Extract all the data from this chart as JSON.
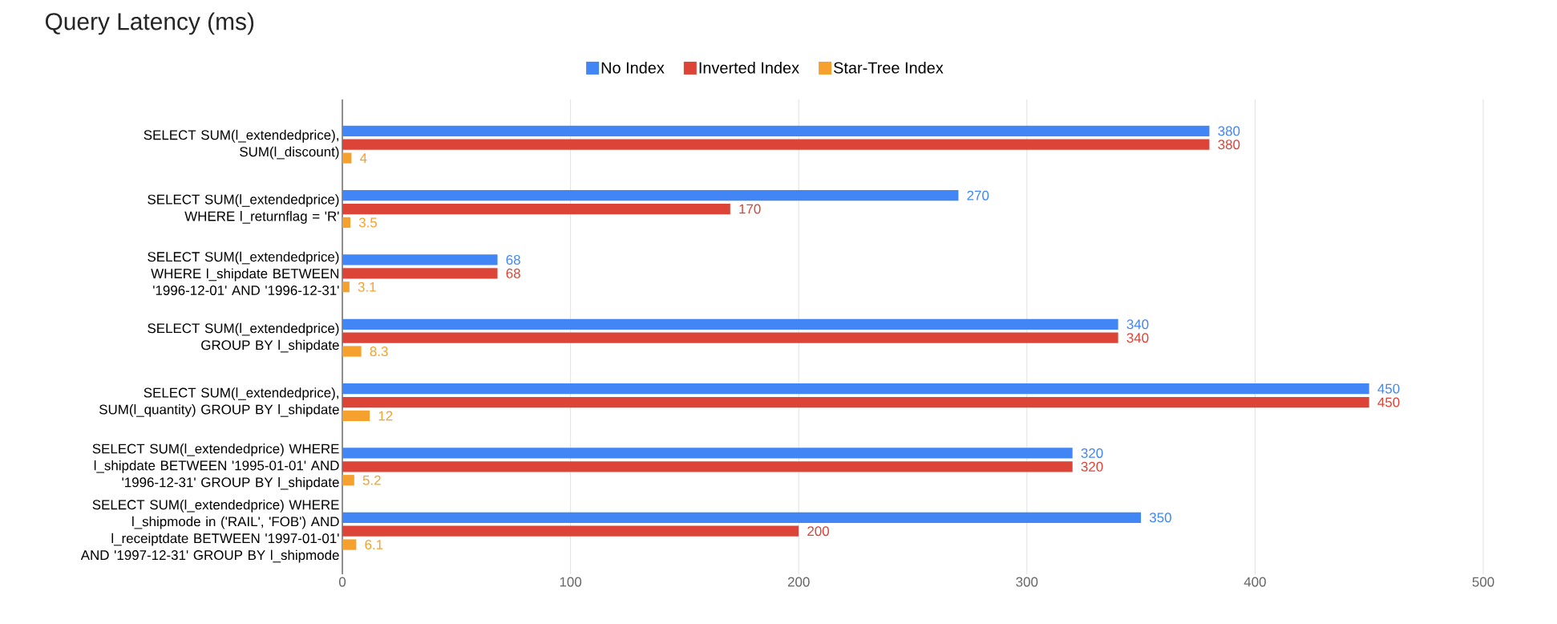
{
  "chart_data": {
    "type": "bar",
    "orientation": "horizontal",
    "title": "Query Latency (ms)",
    "categories": [
      "SELECT SUM(l_extendedprice), SUM(l_discount)",
      "SELECT SUM(l_extendedprice) WHERE l_returnflag = 'R'",
      "SELECT SUM(l_extendedprice) WHERE l_shipdate BETWEEN '1996-12-01' AND '1996-12-31'",
      "SELECT SUM(l_extendedprice) GROUP BY l_shipdate",
      "SELECT SUM(l_extendedprice), SUM(l_quantity) GROUP BY l_shipdate",
      "SELECT SUM(l_extendedprice) WHERE l_shipdate BETWEEN '1995-01-01' AND '1996-12-31' GROUP BY l_shipdate",
      "SELECT SUM(l_extendedprice) WHERE l_shipmode in ('RAIL', 'FOB') AND l_receiptdate BETWEEN '1997-01-01' AND '1997-12-31' GROUP BY l_shipmode"
    ],
    "series": [
      {
        "name": "No Index",
        "color": "#4285f4",
        "values": [
          380,
          270,
          68,
          340,
          450,
          320,
          350
        ]
      },
      {
        "name": "Inverted Index",
        "color": "#db4437",
        "values": [
          380,
          170,
          68,
          340,
          450,
          320,
          200
        ]
      },
      {
        "name": "Star-Tree Index",
        "color": "#f6a02d",
        "values": [
          4,
          3.5,
          3.1,
          8.3,
          12,
          5.2,
          6.1
        ]
      }
    ],
    "xlim": [
      0,
      500
    ],
    "xticks": [
      0,
      100,
      200,
      300,
      400,
      500
    ],
    "grid": "x",
    "legend": "top",
    "data_labels": true
  }
}
